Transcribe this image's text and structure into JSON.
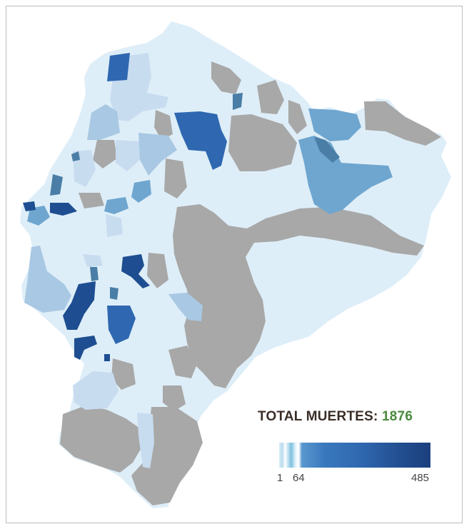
{
  "legend": {
    "total_label": "TOTAL MUERTES:",
    "total_value": "1876",
    "min_label": "1",
    "mid_label": "64",
    "max_label": "485"
  },
  "colors": {
    "background_region": "#deeef8",
    "no_data": "#a8a8a8",
    "very_light": "#c8dcf0",
    "light": "#a8c8e3",
    "medium": "#6fa6cf",
    "medium_dark": "#4a7ea6",
    "dark": "#2f68b1",
    "darkest": "#1e4e91",
    "total_value": "#4a8a3e"
  }
}
